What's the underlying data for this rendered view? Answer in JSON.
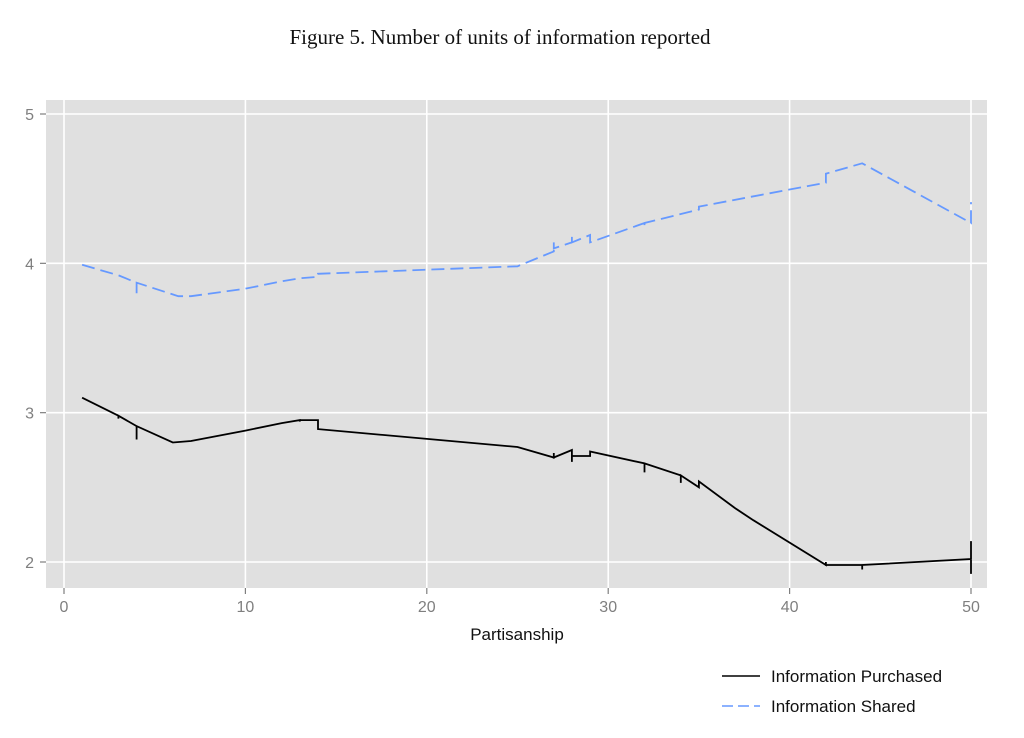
{
  "chart_data": {
    "type": "line",
    "title": "Figure 5. Number of units of information reported",
    "xlabel": "Partisanship",
    "ylabel": "",
    "xlim": [
      0,
      50
    ],
    "ylim": [
      2,
      5
    ],
    "xticks": [
      0,
      10,
      20,
      30,
      40,
      50
    ],
    "yticks": [
      2,
      3,
      4,
      5
    ],
    "grid": true,
    "panel_background": "#e0e0e0",
    "legend_position": "bottom-right",
    "series": [
      {
        "name": "Information Purchased",
        "color": "#000000",
        "dash": "solid",
        "points": [
          [
            1,
            3.1
          ],
          [
            3,
            2.98
          ],
          [
            3,
            2.96
          ],
          [
            3,
            2.98
          ],
          [
            4,
            2.91
          ],
          [
            4,
            2.82
          ],
          [
            4,
            2.91
          ],
          [
            6,
            2.8
          ],
          [
            7,
            2.81
          ],
          [
            10,
            2.88
          ],
          [
            12,
            2.93
          ],
          [
            13,
            2.95
          ],
          [
            13,
            2.94
          ],
          [
            13,
            2.95
          ],
          [
            14,
            2.95
          ],
          [
            14,
            2.89
          ],
          [
            25,
            2.77
          ],
          [
            27,
            2.7
          ],
          [
            27,
            2.73
          ],
          [
            27,
            2.7
          ],
          [
            28,
            2.75
          ],
          [
            28,
            2.67
          ],
          [
            28,
            2.71
          ],
          [
            29,
            2.71
          ],
          [
            29,
            2.74
          ],
          [
            32,
            2.66
          ],
          [
            32,
            2.6
          ],
          [
            32,
            2.66
          ],
          [
            34,
            2.58
          ],
          [
            34,
            2.53
          ],
          [
            34,
            2.58
          ],
          [
            35,
            2.5
          ],
          [
            35,
            2.54
          ],
          [
            37,
            2.36
          ],
          [
            38,
            2.28
          ],
          [
            42,
            1.98
          ],
          [
            42,
            2.0
          ],
          [
            42,
            1.98
          ],
          [
            44,
            1.98
          ],
          [
            44,
            1.95
          ],
          [
            44,
            1.98
          ],
          [
            50,
            2.02
          ],
          [
            50,
            2.14
          ],
          [
            50,
            1.92
          ]
        ]
      },
      {
        "name": "Information Shared",
        "color": "#6699ff",
        "dash": "dashed",
        "points": [
          [
            1,
            3.99
          ],
          [
            3,
            3.92
          ],
          [
            4,
            3.87
          ],
          [
            4,
            3.8
          ],
          [
            4,
            3.87
          ],
          [
            6.3,
            3.78
          ],
          [
            7,
            3.78
          ],
          [
            10,
            3.83
          ],
          [
            12,
            3.88
          ],
          [
            13,
            3.9
          ],
          [
            14,
            3.91
          ],
          [
            14,
            3.93
          ],
          [
            25,
            3.98
          ],
          [
            27,
            4.08
          ],
          [
            27,
            4.14
          ],
          [
            27,
            4.1
          ],
          [
            28,
            4.14
          ],
          [
            28,
            4.19
          ],
          [
            28,
            4.14
          ],
          [
            29,
            4.19
          ],
          [
            29,
            4.14
          ],
          [
            32,
            4.27
          ],
          [
            32,
            4.24
          ],
          [
            32,
            4.27
          ],
          [
            35,
            4.36
          ],
          [
            35,
            4.38
          ],
          [
            42,
            4.54
          ],
          [
            42,
            4.6
          ],
          [
            44,
            4.67
          ],
          [
            50,
            4.27
          ],
          [
            50,
            4.41
          ]
        ]
      }
    ]
  }
}
